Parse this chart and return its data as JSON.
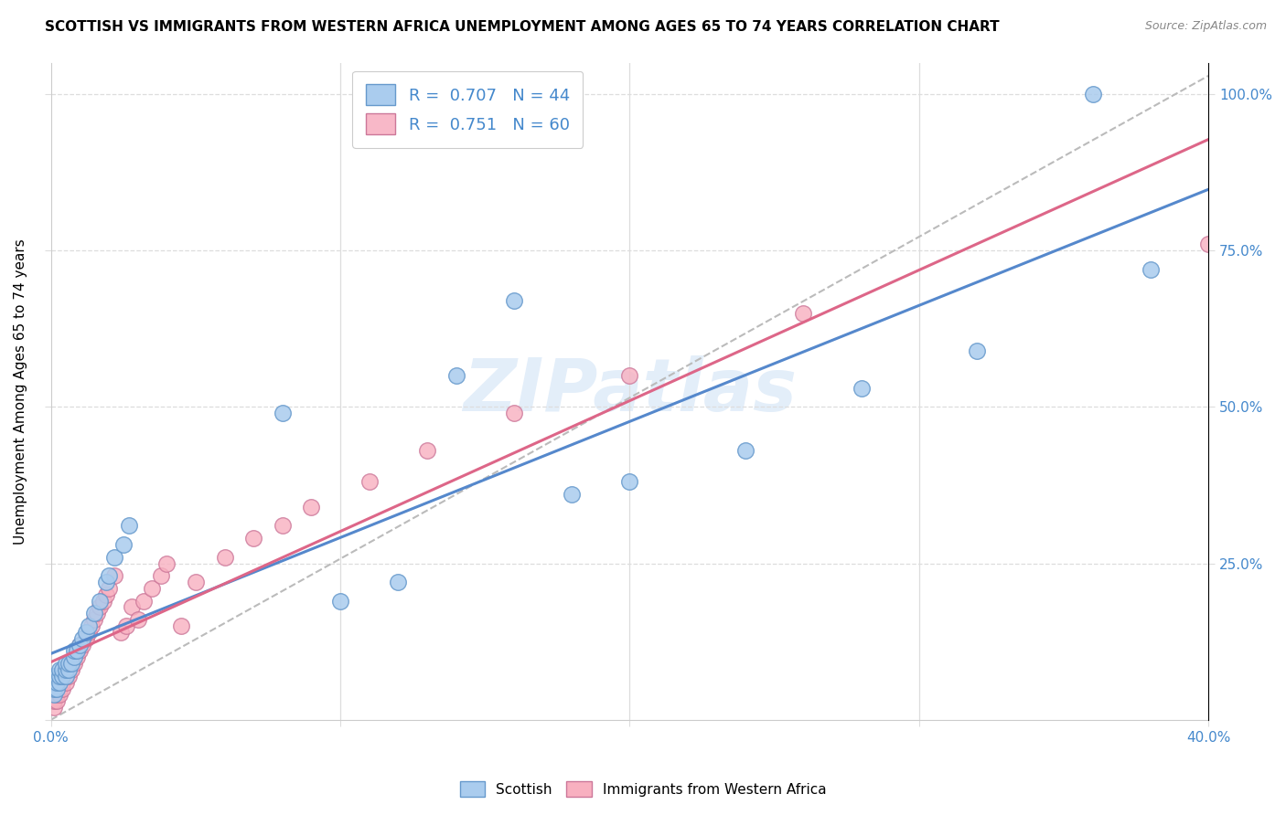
{
  "title": "SCOTTISH VS IMMIGRANTS FROM WESTERN AFRICA UNEMPLOYMENT AMONG AGES 65 TO 74 YEARS CORRELATION CHART",
  "source": "Source: ZipAtlas.com",
  "ylabel": "Unemployment Among Ages 65 to 74 years",
  "watermark": "ZIPatlas",
  "legend_label1": "R =  0.707   N = 44",
  "legend_label2": "R =  0.751   N = 60",
  "legend_color1": "#aaccee",
  "legend_color2": "#f8b8c8",
  "scatter_color1": "#aaccee",
  "scatter_color2": "#f8b0c0",
  "scatter_edge1": "#6699cc",
  "scatter_edge2": "#cc7799",
  "line_color1": "#5588cc",
  "line_color2": "#dd6688",
  "dash_color": "#bbbbbb",
  "scottish_x": [
    0.001,
    0.001,
    0.001,
    0.001,
    0.002,
    0.002,
    0.002,
    0.003,
    0.003,
    0.003,
    0.004,
    0.004,
    0.005,
    0.005,
    0.005,
    0.006,
    0.006,
    0.007,
    0.008,
    0.008,
    0.009,
    0.01,
    0.011,
    0.012,
    0.013,
    0.015,
    0.017,
    0.019,
    0.02,
    0.022,
    0.025,
    0.027,
    0.1,
    0.12,
    0.18,
    0.2,
    0.24,
    0.28,
    0.32,
    0.38,
    0.08,
    0.14,
    0.16,
    0.36
  ],
  "scottish_y": [
    0.04,
    0.05,
    0.06,
    0.07,
    0.05,
    0.06,
    0.07,
    0.06,
    0.07,
    0.08,
    0.07,
    0.08,
    0.07,
    0.08,
    0.09,
    0.08,
    0.09,
    0.09,
    0.1,
    0.11,
    0.11,
    0.12,
    0.13,
    0.14,
    0.15,
    0.17,
    0.19,
    0.22,
    0.23,
    0.26,
    0.28,
    0.31,
    0.19,
    0.22,
    0.36,
    0.38,
    0.43,
    0.53,
    0.59,
    0.72,
    0.49,
    0.55,
    0.67,
    1.0
  ],
  "western_x": [
    0.001,
    0.001,
    0.001,
    0.001,
    0.001,
    0.002,
    0.002,
    0.002,
    0.002,
    0.003,
    0.003,
    0.003,
    0.003,
    0.004,
    0.004,
    0.004,
    0.005,
    0.005,
    0.005,
    0.006,
    0.006,
    0.007,
    0.007,
    0.008,
    0.008,
    0.009,
    0.009,
    0.01,
    0.01,
    0.011,
    0.012,
    0.013,
    0.014,
    0.015,
    0.016,
    0.017,
    0.018,
    0.019,
    0.02,
    0.022,
    0.024,
    0.026,
    0.028,
    0.03,
    0.032,
    0.035,
    0.038,
    0.04,
    0.045,
    0.05,
    0.06,
    0.07,
    0.08,
    0.09,
    0.11,
    0.13,
    0.16,
    0.2,
    0.26,
    0.4
  ],
  "western_y": [
    0.02,
    0.03,
    0.04,
    0.05,
    0.06,
    0.03,
    0.04,
    0.05,
    0.06,
    0.04,
    0.05,
    0.06,
    0.07,
    0.05,
    0.06,
    0.07,
    0.06,
    0.07,
    0.08,
    0.07,
    0.08,
    0.08,
    0.09,
    0.09,
    0.1,
    0.1,
    0.11,
    0.11,
    0.12,
    0.12,
    0.13,
    0.14,
    0.15,
    0.16,
    0.17,
    0.18,
    0.19,
    0.2,
    0.21,
    0.23,
    0.14,
    0.15,
    0.18,
    0.16,
    0.19,
    0.21,
    0.23,
    0.25,
    0.15,
    0.22,
    0.26,
    0.29,
    0.31,
    0.34,
    0.38,
    0.43,
    0.49,
    0.55,
    0.65,
    0.76
  ],
  "xmin": 0.0,
  "xmax": 0.4,
  "ymin": 0.0,
  "ymax": 1.05,
  "grid_color": "#dddddd",
  "bg_color": "#ffffff",
  "title_fontsize": 11,
  "axis_label_color": "#4488cc",
  "source_fontsize": 9,
  "right_ytick_labels": [
    "25.0%",
    "50.0%",
    "75.0%",
    "100.0%"
  ],
  "right_ytick_vals": [
    0.25,
    0.5,
    0.75,
    1.0
  ],
  "xtick_positions": [
    0.0,
    0.1,
    0.2,
    0.3,
    0.4
  ],
  "xtick_labels": [
    "0.0%",
    "",
    "",
    "",
    "40.0%"
  ]
}
